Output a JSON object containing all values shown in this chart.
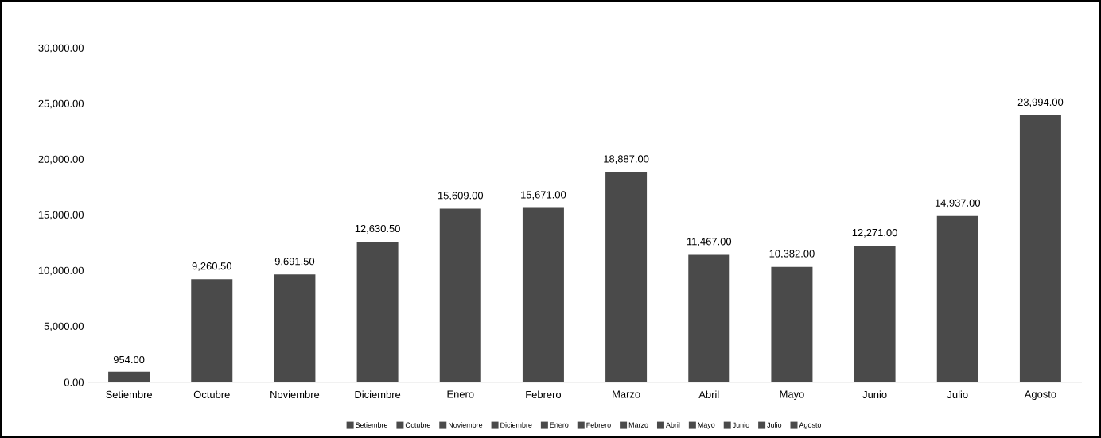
{
  "chart_data": {
    "type": "bar",
    "categories": [
      "Setiembre",
      "Octubre",
      "Noviembre",
      "Diciembre",
      "Enero",
      "Febrero",
      "Marzo",
      "Abril",
      "Mayo",
      "Junio",
      "Julio",
      "Agosto"
    ],
    "series": [
      {
        "name": "Setiembre",
        "color": "#4a4a4a",
        "values": [
          954,
          null,
          null,
          null,
          null,
          null,
          null,
          null,
          null,
          null,
          null,
          null
        ],
        "value_labels": [
          "954.00",
          null,
          null,
          null,
          null,
          null,
          null,
          null,
          null,
          null,
          null,
          null
        ]
      },
      {
        "name": "Octubre",
        "color": "#4a4a4a",
        "values": [
          null,
          9260.5,
          null,
          null,
          null,
          null,
          null,
          null,
          null,
          null,
          null,
          null
        ],
        "value_labels": [
          null,
          "9,260.50",
          null,
          null,
          null,
          null,
          null,
          null,
          null,
          null,
          null,
          null
        ]
      },
      {
        "name": "Noviembre",
        "color": "#4a4a4a",
        "values": [
          null,
          null,
          9691.5,
          null,
          null,
          null,
          null,
          null,
          null,
          null,
          null,
          null
        ],
        "value_labels": [
          null,
          null,
          "9,691.50",
          null,
          null,
          null,
          null,
          null,
          null,
          null,
          null,
          null
        ]
      },
      {
        "name": "Diciembre",
        "color": "#4a4a4a",
        "values": [
          null,
          null,
          null,
          12630.5,
          null,
          null,
          null,
          null,
          null,
          null,
          null,
          null
        ],
        "value_labels": [
          null,
          null,
          null,
          "12,630.50",
          null,
          null,
          null,
          null,
          null,
          null,
          null,
          null
        ]
      },
      {
        "name": "Enero",
        "color": "#4a4a4a",
        "values": [
          null,
          null,
          null,
          null,
          15609,
          null,
          null,
          null,
          null,
          null,
          null,
          null
        ],
        "value_labels": [
          null,
          null,
          null,
          null,
          "15,609.00",
          null,
          null,
          null,
          null,
          null,
          null,
          null
        ]
      },
      {
        "name": "Febrero",
        "color": "#4a4a4a",
        "values": [
          null,
          null,
          null,
          null,
          null,
          15671,
          null,
          null,
          null,
          null,
          null,
          null
        ],
        "value_labels": [
          null,
          null,
          null,
          null,
          null,
          "15,671.00",
          null,
          null,
          null,
          null,
          null,
          null
        ]
      },
      {
        "name": "Marzo",
        "color": "#4a4a4a",
        "values": [
          null,
          null,
          null,
          null,
          null,
          null,
          18887,
          null,
          null,
          null,
          null,
          null
        ],
        "value_labels": [
          null,
          null,
          null,
          null,
          null,
          null,
          "18,887.00",
          null,
          null,
          null,
          null,
          null
        ]
      },
      {
        "name": "Abril",
        "color": "#4a4a4a",
        "values": [
          null,
          null,
          null,
          null,
          null,
          null,
          null,
          11467,
          null,
          null,
          null,
          null
        ],
        "value_labels": [
          null,
          null,
          null,
          null,
          null,
          null,
          null,
          "11,467.00",
          null,
          null,
          null,
          null
        ]
      },
      {
        "name": "Mayo",
        "color": "#4a4a4a",
        "values": [
          null,
          null,
          null,
          null,
          null,
          null,
          null,
          null,
          10382,
          null,
          null,
          null
        ],
        "value_labels": [
          null,
          null,
          null,
          null,
          null,
          null,
          null,
          null,
          "10,382.00",
          null,
          null,
          null
        ]
      },
      {
        "name": "Junio",
        "color": "#4a4a4a",
        "values": [
          null,
          null,
          null,
          null,
          null,
          null,
          null,
          null,
          null,
          12271,
          null,
          null
        ],
        "value_labels": [
          null,
          null,
          null,
          null,
          null,
          null,
          null,
          null,
          null,
          "12,271.00",
          null,
          null
        ]
      },
      {
        "name": "Julio",
        "color": "#4a4a4a",
        "values": [
          null,
          null,
          null,
          null,
          null,
          null,
          null,
          null,
          null,
          null,
          14937,
          null
        ],
        "value_labels": [
          null,
          null,
          null,
          null,
          null,
          null,
          null,
          null,
          null,
          null,
          "14,937.00",
          null
        ]
      },
      {
        "name": "Agosto",
        "color": "#4a4a4a",
        "values": [
          null,
          null,
          null,
          null,
          null,
          null,
          null,
          null,
          null,
          null,
          null,
          23994
        ],
        "value_labels": [
          null,
          null,
          null,
          null,
          null,
          null,
          null,
          null,
          null,
          null,
          null,
          "23,994.00"
        ]
      }
    ],
    "ylim": [
      0,
      30000
    ],
    "yticks": [
      {
        "value": 0,
        "label": "0.00"
      },
      {
        "value": 5000,
        "label": "5,000.00"
      },
      {
        "value": 10000,
        "label": "10,000.00"
      },
      {
        "value": 15000,
        "label": "15,000.00"
      },
      {
        "value": 20000,
        "label": "20,000.00"
      },
      {
        "value": 25000,
        "label": "25,000.00"
      },
      {
        "value": 30000,
        "label": "30,000.00"
      }
    ],
    "legend": "bottom"
  }
}
